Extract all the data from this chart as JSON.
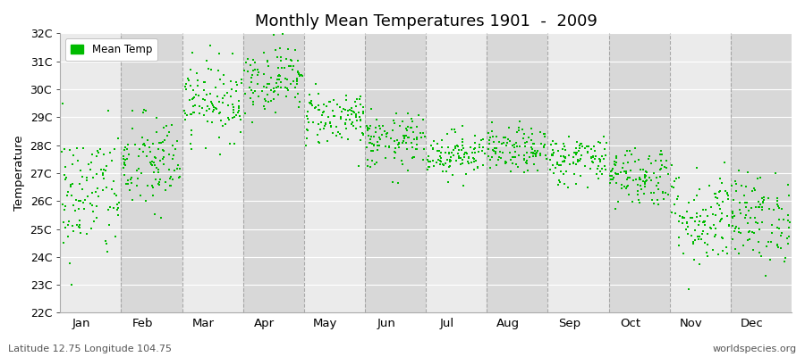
{
  "title": "Monthly Mean Temperatures 1901  -  2009",
  "ylabel": "Temperature",
  "xlabel_bottom_left": "Latitude 12.75 Longitude 104.75",
  "xlabel_bottom_right": "worldspecies.org",
  "legend_label": "Mean Temp",
  "dot_color": "#00bb00",
  "dot_size": 2,
  "bg_color": "#ffffff",
  "plot_bg_color_light": "#ebebeb",
  "plot_bg_color_dark": "#d8d8d8",
  "y_min": 22,
  "y_max": 32,
  "y_ticks": [
    22,
    23,
    24,
    25,
    26,
    27,
    28,
    29,
    30,
    31,
    32
  ],
  "months": [
    "Jan",
    "Feb",
    "Mar",
    "Apr",
    "May",
    "Jun",
    "Jul",
    "Aug",
    "Sep",
    "Oct",
    "Nov",
    "Dec"
  ],
  "month_means": [
    26.2,
    27.3,
    29.6,
    30.4,
    29.0,
    28.1,
    27.7,
    27.8,
    27.5,
    26.9,
    25.4,
    25.4
  ],
  "month_stds": [
    1.2,
    0.9,
    0.7,
    0.6,
    0.5,
    0.5,
    0.4,
    0.4,
    0.45,
    0.55,
    0.9,
    0.8
  ],
  "n_years": 109,
  "seed": 42,
  "vline_color": "#999999",
  "title_fontsize": 13
}
